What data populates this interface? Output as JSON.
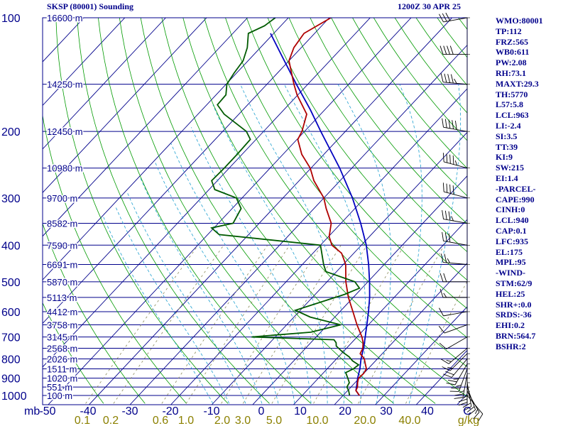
{
  "header": {
    "station_title": "SKSP (80001) Sounding",
    "valid_time": "1200Z 30 APR 25"
  },
  "chart_data": {
    "type": "skew-t",
    "temperature_axis_label": "mb",
    "mixing_ratio_unit": "g/kg",
    "pressure_ticks": [
      "100",
      "200",
      "300",
      "400",
      "500",
      "600",
      "700",
      "800",
      "900",
      "1000"
    ],
    "temperature_ticks": [
      "-50",
      "-40",
      "-30",
      "-20",
      "-10",
      "0",
      "10",
      "20",
      "30",
      "40",
      "C"
    ],
    "mixing_ratio_ticks": [
      "0.1",
      "0.2",
      "0.6",
      "1.0",
      "2.0",
      "3.0",
      "5.0",
      "10.0",
      "20.0",
      "40.0"
    ],
    "height_labels": [
      {
        "p": 100,
        "label": "16600 m"
      },
      {
        "p": 150,
        "label": "14250 m"
      },
      {
        "p": 200,
        "label": "12450 m"
      },
      {
        "p": 250,
        "label": "10980 m"
      },
      {
        "p": 300,
        "label": "9700 m"
      },
      {
        "p": 350,
        "label": "8582 m"
      },
      {
        "p": 400,
        "label": "7590 m"
      },
      {
        "p": 450,
        "label": "6691 m"
      },
      {
        "p": 500,
        "label": "5870 m"
      },
      {
        "p": 550,
        "label": "5113 m"
      },
      {
        "p": 600,
        "label": "4412 m"
      },
      {
        "p": 650,
        "label": "3758 m"
      },
      {
        "p": 700,
        "label": "3145 m"
      },
      {
        "p": 750,
        "label": "2568 m"
      },
      {
        "p": 800,
        "label": "2026 m"
      },
      {
        "p": 850,
        "label": "1511 m"
      },
      {
        "p": 900,
        "label": "1020 m"
      },
      {
        "p": 950,
        "label": "551 m"
      },
      {
        "p": 1000,
        "label": "100 m"
      }
    ],
    "temperature_profile": [
      {
        "p": 1000,
        "t": 24.0
      },
      {
        "p": 970,
        "t": 22.0
      },
      {
        "p": 950,
        "t": 21.6
      },
      {
        "p": 925,
        "t": 20.6
      },
      {
        "p": 900,
        "t": 19.8
      },
      {
        "p": 875,
        "t": 20.0
      },
      {
        "p": 850,
        "t": 19.6
      },
      {
        "p": 825,
        "t": 18.2
      },
      {
        "p": 800,
        "t": 16.8
      },
      {
        "p": 775,
        "t": 14.6
      },
      {
        "p": 750,
        "t": 14.0
      },
      {
        "p": 725,
        "t": 12.8
      },
      {
        "p": 700,
        "t": 11.2
      },
      {
        "p": 650,
        "t": 7.2
      },
      {
        "p": 600,
        "t": 3.2
      },
      {
        "p": 550,
        "t": -1.2
      },
      {
        "p": 500,
        "t": -5.4
      },
      {
        "p": 450,
        "t": -9.4
      },
      {
        "p": 420,
        "t": -13.0
      },
      {
        "p": 400,
        "t": -17.2
      },
      {
        "p": 380,
        "t": -19.8
      },
      {
        "p": 350,
        "t": -22.4
      },
      {
        "p": 320,
        "t": -27.0
      },
      {
        "p": 300,
        "t": -30.0
      },
      {
        "p": 270,
        "t": -36.4
      },
      {
        "p": 250,
        "t": -40.2
      },
      {
        "p": 230,
        "t": -45.4
      },
      {
        "p": 210,
        "t": -49.8
      },
      {
        "p": 200,
        "t": -50.6
      },
      {
        "p": 180,
        "t": -53.4
      },
      {
        "p": 160,
        "t": -60.2
      },
      {
        "p": 150,
        "t": -63.4
      },
      {
        "p": 130,
        "t": -70.0
      },
      {
        "p": 120,
        "t": -71.8
      },
      {
        "p": 110,
        "t": -72.6
      },
      {
        "p": 100,
        "t": -69.6
      }
    ],
    "dewpoint_profile": [
      {
        "p": 1000,
        "t": 21.6
      },
      {
        "p": 970,
        "t": 20.2
      },
      {
        "p": 950,
        "t": 19.0
      },
      {
        "p": 925,
        "t": 18.6
      },
      {
        "p": 900,
        "t": 17.2
      },
      {
        "p": 870,
        "t": 15.4
      },
      {
        "p": 850,
        "t": 16.4
      },
      {
        "p": 830,
        "t": 16.8
      },
      {
        "p": 810,
        "t": 14.4
      },
      {
        "p": 790,
        "t": 12.6
      },
      {
        "p": 770,
        "t": 10.2
      },
      {
        "p": 740,
        "t": 7.0
      },
      {
        "p": 725,
        "t": 6.2
      },
      {
        "p": 712,
        "t": 5.0
      },
      {
        "p": 700,
        "t": -15.8
      },
      {
        "p": 680,
        "t": -2.4
      },
      {
        "p": 650,
        "t": 3.2
      },
      {
        "p": 620,
        "t": -6.0
      },
      {
        "p": 595,
        "t": -11.2
      },
      {
        "p": 540,
        "t": -2.8
      },
      {
        "p": 520,
        "t": -0.6
      },
      {
        "p": 500,
        "t": -3.2
      },
      {
        "p": 470,
        "t": -12.6
      },
      {
        "p": 450,
        "t": -14.8
      },
      {
        "p": 400,
        "t": -20.0
      },
      {
        "p": 375,
        "t": -47.2
      },
      {
        "p": 360,
        "t": -50.6
      },
      {
        "p": 350,
        "t": -46.4
      },
      {
        "p": 320,
        "t": -47.8
      },
      {
        "p": 300,
        "t": -51.4
      },
      {
        "p": 285,
        "t": -58.6
      },
      {
        "p": 270,
        "t": -61.4
      },
      {
        "p": 250,
        "t": -61.2
      },
      {
        "p": 230,
        "t": -61.2
      },
      {
        "p": 210,
        "t": -61.4
      },
      {
        "p": 200,
        "t": -64.2
      },
      {
        "p": 180,
        "t": -73.6
      },
      {
        "p": 170,
        "t": -77.4
      },
      {
        "p": 160,
        "t": -77.6
      },
      {
        "p": 150,
        "t": -79.8
      },
      {
        "p": 140,
        "t": -80.6
      },
      {
        "p": 130,
        "t": -81.2
      },
      {
        "p": 120,
        "t": -83.2
      },
      {
        "p": 110,
        "t": -86.2
      },
      {
        "p": 105,
        "t": -84.0
      },
      {
        "p": 100,
        "t": -83.2
      }
    ],
    "parcel_profile": [
      {
        "p": 1000,
        "t": 24.0
      },
      {
        "p": 970,
        "t": 22.0
      },
      {
        "p": 940,
        "t": 21.0
      },
      {
        "p": 900,
        "t": 19.6
      },
      {
        "p": 850,
        "t": 18.0
      },
      {
        "p": 800,
        "t": 16.0
      },
      {
        "p": 750,
        "t": 14.2
      },
      {
        "p": 700,
        "t": 12.0
      },
      {
        "p": 650,
        "t": 9.6
      },
      {
        "p": 600,
        "t": 7.0
      },
      {
        "p": 550,
        "t": 4.0
      },
      {
        "p": 500,
        "t": 0.4
      },
      {
        "p": 450,
        "t": -3.8
      },
      {
        "p": 400,
        "t": -8.8
      },
      {
        "p": 350,
        "t": -15.2
      },
      {
        "p": 300,
        "t": -23.0
      },
      {
        "p": 250,
        "t": -33.0
      },
      {
        "p": 200,
        "t": -46.0
      },
      {
        "p": 175,
        "t": -53.6
      },
      {
        "p": 150,
        "t": -62.8
      },
      {
        "p": 125,
        "t": -73.4
      },
      {
        "p": 110,
        "t": -80.8
      }
    ],
    "wind_profile": [
      {
        "p": 1000,
        "dir": 140,
        "spd": 10
      },
      {
        "p": 975,
        "dir": 150,
        "spd": 15
      },
      {
        "p": 950,
        "dir": 160,
        "spd": 20
      },
      {
        "p": 925,
        "dir": 170,
        "spd": 20
      },
      {
        "p": 900,
        "dir": 180,
        "spd": 25
      },
      {
        "p": 875,
        "dir": 190,
        "spd": 25
      },
      {
        "p": 850,
        "dir": 200,
        "spd": 25
      },
      {
        "p": 825,
        "dir": 210,
        "spd": 25
      },
      {
        "p": 800,
        "dir": 220,
        "spd": 20
      },
      {
        "p": 775,
        "dir": 225,
        "spd": 15
      },
      {
        "p": 750,
        "dir": 230,
        "spd": 15
      },
      {
        "p": 700,
        "dir": 240,
        "spd": 10
      },
      {
        "p": 650,
        "dir": 250,
        "spd": 10
      },
      {
        "p": 600,
        "dir": 260,
        "spd": 10
      },
      {
        "p": 550,
        "dir": 270,
        "spd": 15
      },
      {
        "p": 500,
        "dir": 270,
        "spd": 20
      },
      {
        "p": 450,
        "dir": 275,
        "spd": 25
      },
      {
        "p": 400,
        "dir": 280,
        "spd": 30
      },
      {
        "p": 350,
        "dir": 280,
        "spd": 35
      },
      {
        "p": 300,
        "dir": 285,
        "spd": 40
      },
      {
        "p": 250,
        "dir": 285,
        "spd": 45
      },
      {
        "p": 200,
        "dir": 280,
        "spd": 50
      },
      {
        "p": 150,
        "dir": 275,
        "spd": 45
      },
      {
        "p": 125,
        "dir": 270,
        "spd": 40
      },
      {
        "p": 100,
        "dir": 260,
        "spd": 30
      }
    ]
  },
  "parameters": [
    "WMO:80001",
    "TP:112",
    "FRZ:565",
    "WB0:611",
    "PW:2.08",
    "RH:73.1",
    "MAXT:29.3",
    "TH:5770",
    "L57:5.8",
    "LCL:963",
    "LI:-2.4",
    "SI:3.5",
    "TT:39",
    "KI:9",
    "SW:215",
    "EI:1.4",
    "-PARCEL-",
    "CAPE:990",
    "CINH:0",
    "LCL:940",
    "CAP:0.1",
    "LFC:935",
    "EL:175",
    "MPL:95",
    "-WIND-",
    "STM:62/9",
    "HEL:25",
    "SHR+:0.0",
    "SRDS:-36",
    "EHI:0.2",
    "BRN:564.7",
    "BSHR:2"
  ],
  "colors": {
    "isobar": "#00008b",
    "isotherm": "#00008b",
    "dry_adiabat": "#009a00",
    "moist_adiabat": "#20a0d0",
    "mixing_ratio": "#8a8a5a",
    "temperature": "#b00000",
    "dewpoint": "#005a00",
    "parcel": "#0000c0",
    "text": "#00008b",
    "mixing_ratio_label": "#8b8000",
    "wind": "#000000"
  }
}
